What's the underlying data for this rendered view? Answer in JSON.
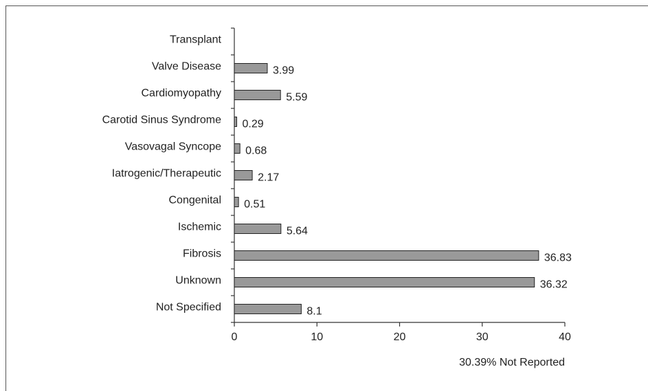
{
  "chart_data": {
    "type": "bar",
    "orientation": "horizontal",
    "categories": [
      "Transplant",
      "Valve Disease",
      "Cardiomyopathy",
      "Carotid Sinus Syndrome",
      "Vasovagal Syncope",
      "Iatrogenic/Therapeutic",
      "Congenital",
      "Ischemic",
      "Fibrosis",
      "Unknown",
      "Not Specified"
    ],
    "values": [
      null,
      3.99,
      5.59,
      0.29,
      0.68,
      2.17,
      0.51,
      5.64,
      36.83,
      36.32,
      8.1
    ],
    "color": "#999999",
    "xlim": [
      0,
      40
    ],
    "xticks": [
      0,
      10,
      20,
      30,
      40
    ],
    "annotation": "30.39% Not Reported"
  }
}
